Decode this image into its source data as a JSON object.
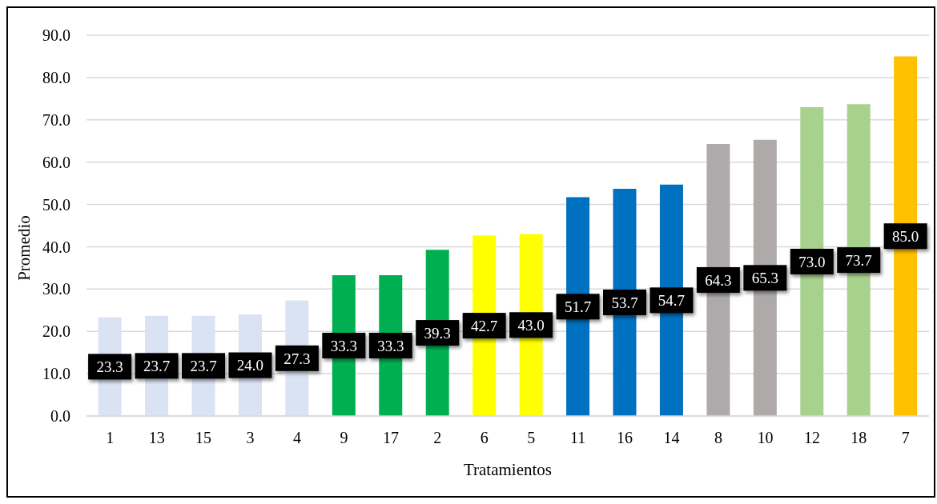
{
  "chart_data": {
    "type": "bar",
    "xlabel": "Tratamientos",
    "ylabel": "Promedio",
    "categories": [
      "1",
      "13",
      "15",
      "3",
      "4",
      "9",
      "17",
      "2",
      "6",
      "5",
      "11",
      "16",
      "14",
      "8",
      "10",
      "12",
      "18",
      "7"
    ],
    "values": [
      23.3,
      23.7,
      23.7,
      24.0,
      27.3,
      33.3,
      33.3,
      39.3,
      42.7,
      43.0,
      51.7,
      53.7,
      54.7,
      64.3,
      65.3,
      73.0,
      73.7,
      85.0
    ],
    "value_labels": [
      "23.3",
      "23.7",
      "23.7",
      "24.0",
      "27.3",
      "33.3",
      "33.3",
      "39.3",
      "42.7",
      "43.0",
      "51.7",
      "53.7",
      "54.7",
      "64.3",
      "65.3",
      "73.0",
      "73.7",
      "85.0"
    ],
    "colors": [
      "#dae3f3",
      "#dae3f3",
      "#dae3f3",
      "#dae3f3",
      "#dae3f3",
      "#00b050",
      "#00b050",
      "#00b050",
      "#ffff00",
      "#ffff00",
      "#0070c0",
      "#0070c0",
      "#0070c0",
      "#aeaaaa",
      "#aeaaaa",
      "#a9d18e",
      "#a9d18e",
      "#ffc000"
    ],
    "ylim": [
      0,
      90
    ],
    "yticks": [
      {
        "value": 0,
        "label": "0.0"
      },
      {
        "value": 10,
        "label": "10.0"
      },
      {
        "value": 20,
        "label": "20.0"
      },
      {
        "value": 30,
        "label": "30.0"
      },
      {
        "value": 40,
        "label": "40.0"
      },
      {
        "value": 50,
        "label": "50.0"
      },
      {
        "value": 60,
        "label": "60.0"
      },
      {
        "value": 70,
        "label": "70.0"
      },
      {
        "value": 80,
        "label": "80.0"
      },
      {
        "value": 90,
        "label": "90.0"
      }
    ],
    "grid": "y"
  }
}
